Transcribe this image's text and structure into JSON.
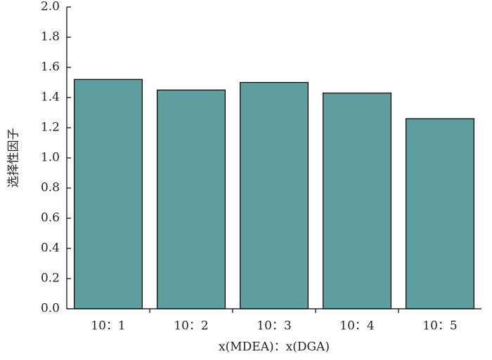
{
  "chart_data": {
    "type": "bar",
    "y_label": "选择性因子",
    "x_label": "x(MDEA)：x(DGA)",
    "categories": [
      "10：1",
      "10：2",
      "10：3",
      "10：4",
      "10：5"
    ],
    "values": [
      1.52,
      1.45,
      1.5,
      1.43,
      1.26
    ],
    "color": "#5f9e9e",
    "ylim": [
      0,
      2.0
    ],
    "yticks": [
      {
        "value": 0,
        "label": "0.0"
      },
      0.2,
      0.4,
      0.6,
      0.8,
      {
        "value": 1.0,
        "label": "1.0"
      },
      1.2,
      1.4,
      1.6,
      1.8,
      {
        "value": 2.0,
        "label": "2.0"
      }
    ],
    "grid": false
  }
}
